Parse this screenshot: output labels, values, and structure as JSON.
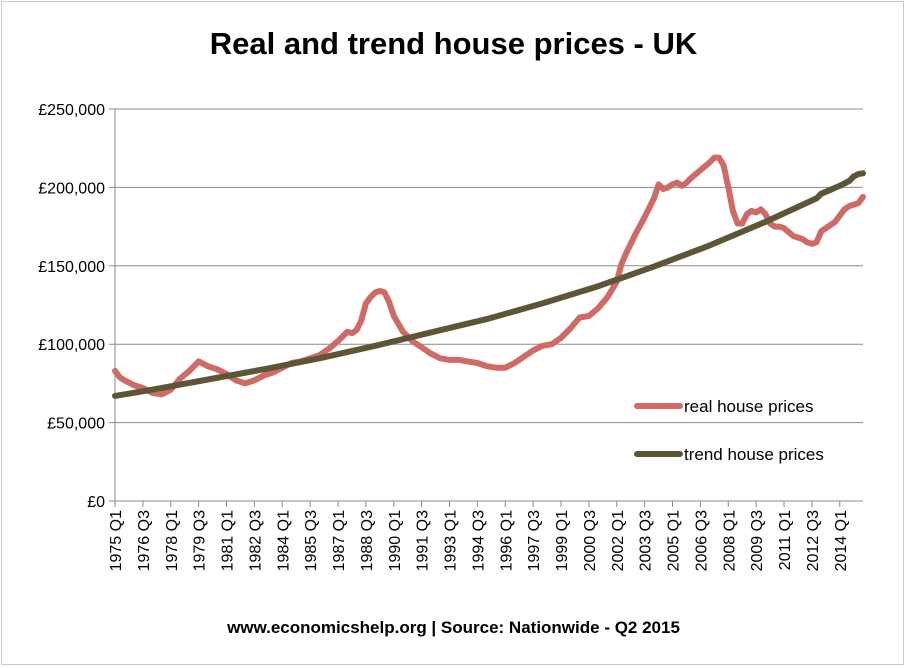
{
  "chart_data": {
    "type": "line",
    "title": "Real and trend house prices - UK",
    "source": "www.economicshelp.org | Source: Nationwide - Q2 2015",
    "ylim": [
      0,
      250000
    ],
    "y_ticks": [
      0,
      50000,
      100000,
      150000,
      200000,
      250000
    ],
    "y_tick_labels": [
      "£0",
      "£50,000",
      "£100,000",
      "£150,000",
      "£200,000",
      "£250,000"
    ],
    "x_tick_labels": [
      "1975 Q1",
      "1976 Q3",
      "1978 Q1",
      "1979 Q3",
      "1981 Q1",
      "1982 Q3",
      "1984 Q1",
      "1985 Q3",
      "1987 Q1",
      "1988 Q3",
      "1990 Q1",
      "1991 Q3",
      "1993 Q1",
      "1994 Q3",
      "1996 Q1",
      "1997 Q3",
      "1999 Q1",
      "2000 Q3",
      "2002 Q1",
      "2003 Q3",
      "2005 Q1",
      "2006 Q3",
      "2008 Q1",
      "2009 Q3",
      "2011 Q1",
      "2012 Q3",
      "2014 Q1"
    ],
    "x_range": [
      1975.0,
      2015.25
    ],
    "grid": true,
    "legend_position": "bottom-right",
    "series": [
      {
        "name": "real house prices",
        "color": "#d06a66",
        "x": [
          1975.0,
          1975.25,
          1975.5,
          1976.0,
          1976.5,
          1977.0,
          1977.5,
          1978.0,
          1978.5,
          1979.0,
          1979.25,
          1979.5,
          1980.0,
          1980.5,
          1981.0,
          1981.5,
          1982.0,
          1982.5,
          1983.0,
          1983.5,
          1984.0,
          1984.5,
          1985.0,
          1985.5,
          1986.0,
          1986.5,
          1987.0,
          1987.25,
          1987.5,
          1987.75,
          1988.0,
          1988.25,
          1988.5,
          1988.75,
          1989.0,
          1989.25,
          1989.5,
          1989.75,
          1990.0,
          1990.5,
          1991.0,
          1991.5,
          1992.0,
          1992.5,
          1993.0,
          1993.5,
          1994.0,
          1994.5,
          1995.0,
          1995.5,
          1996.0,
          1996.5,
          1997.0,
          1997.5,
          1998.0,
          1998.5,
          1999.0,
          1999.5,
          2000.0,
          2000.5,
          2001.0,
          2001.5,
          2002.0,
          2002.25,
          2002.5,
          2003.0,
          2003.5,
          2004.0,
          2004.25,
          2004.5,
          2004.75,
          2005.0,
          2005.25,
          2005.5,
          2005.75,
          2006.0,
          2006.5,
          2007.0,
          2007.25,
          2007.5,
          2007.75,
          2008.0,
          2008.25,
          2008.5,
          2008.75,
          2009.0,
          2009.25,
          2009.5,
          2009.75,
          2010.0,
          2010.25,
          2010.5,
          2010.75,
          2011.0,
          2011.5,
          2012.0,
          2012.25,
          2012.5,
          2012.75,
          2013.0,
          2013.5,
          2013.75,
          2014.0,
          2014.25,
          2014.5,
          2014.75,
          2015.0,
          2015.25
        ],
        "values": [
          83000,
          79000,
          77000,
          74000,
          72000,
          69000,
          68000,
          71000,
          78000,
          83000,
          86000,
          89000,
          86000,
          84000,
          81000,
          77000,
          75000,
          77000,
          80000,
          82000,
          85000,
          88000,
          89000,
          91000,
          93000,
          97000,
          102000,
          105000,
          108000,
          107000,
          109000,
          115000,
          126000,
          130000,
          133000,
          134000,
          133000,
          127000,
          118000,
          108000,
          102000,
          98000,
          94000,
          91000,
          90000,
          90000,
          89000,
          88000,
          86000,
          85000,
          85000,
          88000,
          92000,
          96000,
          99000,
          100000,
          104000,
          110000,
          117000,
          118000,
          123000,
          130000,
          140000,
          151000,
          158000,
          170000,
          181000,
          193000,
          202000,
          199000,
          200000,
          202000,
          203000,
          201000,
          203000,
          206000,
          211000,
          216000,
          219000,
          219000,
          214000,
          200000,
          185000,
          177000,
          177000,
          183000,
          185000,
          184000,
          186000,
          183000,
          177000,
          175000,
          175000,
          174000,
          169000,
          167000,
          165000,
          164000,
          165000,
          172000,
          176000,
          178000,
          182000,
          186000,
          188000,
          189000,
          190000,
          194000
        ]
      },
      {
        "name": "trend house prices",
        "color": "#5c5636",
        "x": [
          1975.0,
          1977.0,
          1980.0,
          1983.0,
          1986.0,
          1989.0,
          1992.0,
          1995.0,
          1998.0,
          2001.0,
          2004.0,
          2007.0,
          2010.0,
          2012.75,
          2013.0,
          2013.5,
          2014.0,
          2014.5,
          2014.75,
          2015.0,
          2015.25
        ],
        "values": [
          67000,
          71000,
          77500,
          84000,
          91000,
          99000,
          107500,
          116000,
          126000,
          137000,
          149500,
          163000,
          178000,
          193000,
          196000,
          198500,
          201000,
          204000,
          207000,
          208500,
          209000
        ]
      }
    ]
  }
}
